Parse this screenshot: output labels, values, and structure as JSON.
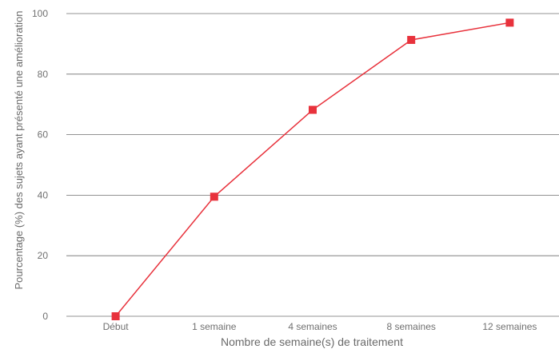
{
  "chart_data": {
    "type": "line",
    "categories": [
      "Début",
      "1 semaine",
      "4 semaines",
      "8 semaines",
      "12 semaines"
    ],
    "series": [
      {
        "values": [
          0,
          39.5,
          68.2,
          91.3,
          97.0
        ],
        "color": "#e8323c",
        "marker": "square"
      }
    ],
    "xlabel": "Nombre de semaine(s) de traitement",
    "ylabel": "Pourcentage (%) des sujets ayant présenté une amélioration",
    "ylim": [
      0,
      100
    ],
    "yticks": [
      "0",
      "20",
      "40",
      "60",
      "80",
      "100"
    ],
    "grid": true
  }
}
